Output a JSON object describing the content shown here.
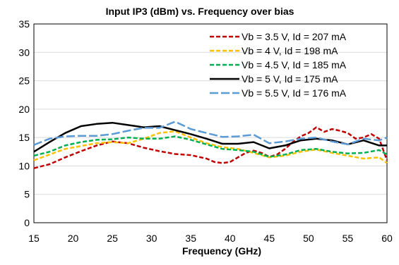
{
  "chart_data": {
    "type": "line",
    "title": "Input IP3 (dBm) vs. Frequency over bias",
    "xlabel": "Frequency (GHz)",
    "ylabel": "",
    "xlim": [
      15,
      60
    ],
    "ylim": [
      0,
      35
    ],
    "xticks": [
      15,
      20,
      25,
      30,
      35,
      40,
      45,
      50,
      55,
      60
    ],
    "yticks": [
      0,
      5,
      10,
      15,
      20,
      25,
      30,
      35
    ],
    "grid": "horizontal",
    "legend_position": "top-right",
    "series": [
      {
        "name": "Vb = 3.5 V, Id = 207 mA",
        "color": "#c00000",
        "dash": "dashed",
        "x": [
          15,
          17,
          19,
          21,
          23,
          25,
          27,
          29,
          31,
          33,
          35,
          37,
          38,
          39,
          40,
          41,
          42,
          43,
          44,
          45,
          46,
          47,
          48,
          49,
          50,
          51,
          52,
          53,
          54,
          55,
          56,
          57,
          58,
          59,
          60
        ],
        "y": [
          9.6,
          10.3,
          11.5,
          12.6,
          13.6,
          14.3,
          14.0,
          13.2,
          12.6,
          12.1,
          11.9,
          11.3,
          10.7,
          10.5,
          10.7,
          11.5,
          12.3,
          12.7,
          12.3,
          11.6,
          12.0,
          13.0,
          14.2,
          15.2,
          15.8,
          16.8,
          16.0,
          16.5,
          16.2,
          15.8,
          14.8,
          15.0,
          15.6,
          14.8,
          11.0
        ]
      },
      {
        "name": "Vb = 4 V, Id = 198 mA",
        "color": "#ffc000",
        "dash": "dashed",
        "x": [
          15,
          17,
          19,
          21,
          23,
          25,
          27,
          29,
          31,
          33,
          35,
          37,
          39,
          41,
          43,
          45,
          47,
          49,
          51,
          53,
          55,
          57,
          59,
          60
        ],
        "y": [
          11.0,
          12.0,
          13.0,
          13.5,
          14.0,
          14.2,
          14.0,
          14.8,
          15.8,
          16.1,
          15.0,
          14.0,
          13.3,
          13.0,
          12.3,
          11.5,
          11.8,
          12.5,
          12.9,
          12.3,
          11.8,
          11.3,
          11.5,
          10.5
        ]
      },
      {
        "name": "Vb = 4.5 V, Id = 185 mA",
        "color": "#00b050",
        "dash": "dashed",
        "x": [
          15,
          17,
          19,
          21,
          23,
          25,
          27,
          29,
          31,
          33,
          35,
          37,
          39,
          41,
          43,
          45,
          47,
          49,
          51,
          53,
          55,
          57,
          59,
          60
        ],
        "y": [
          11.8,
          12.5,
          13.6,
          14.2,
          14.6,
          14.7,
          15.0,
          14.8,
          14.8,
          15.2,
          14.6,
          13.8,
          13.0,
          12.8,
          12.5,
          11.6,
          12.0,
          12.8,
          13.0,
          12.5,
          12.2,
          12.3,
          12.8,
          12.0
        ]
      },
      {
        "name": "Vb = 5 V, Id = 175 mA",
        "color": "#000000",
        "dash": "solid",
        "x": [
          15,
          17,
          19,
          21,
          23,
          25,
          27,
          29,
          31,
          33,
          35,
          37,
          39,
          41,
          43,
          45,
          47,
          49,
          51,
          53,
          55,
          57,
          59,
          60
        ],
        "y": [
          12.5,
          14.2,
          15.8,
          17.0,
          17.4,
          17.6,
          17.2,
          16.8,
          17.0,
          16.3,
          15.6,
          14.8,
          13.9,
          13.9,
          14.2,
          13.1,
          13.6,
          14.5,
          14.8,
          14.5,
          13.8,
          14.5,
          13.6,
          13.6
        ]
      },
      {
        "name": "Vb = 5.5 V, Id = 176 mA",
        "color": "#5b9bd5",
        "dash": "long-dash",
        "x": [
          15,
          17,
          19,
          21,
          23,
          25,
          27,
          29,
          31,
          33,
          35,
          37,
          39,
          41,
          43,
          45,
          47,
          49,
          51,
          53,
          55,
          57,
          59,
          60
        ],
        "y": [
          13.7,
          14.8,
          15.2,
          15.3,
          15.3,
          15.6,
          16.2,
          16.7,
          16.7,
          17.8,
          16.5,
          15.8,
          15.1,
          15.2,
          15.5,
          14.0,
          14.3,
          14.8,
          15.0,
          14.3,
          13.8,
          14.8,
          14.5,
          15.0
        ]
      }
    ]
  }
}
